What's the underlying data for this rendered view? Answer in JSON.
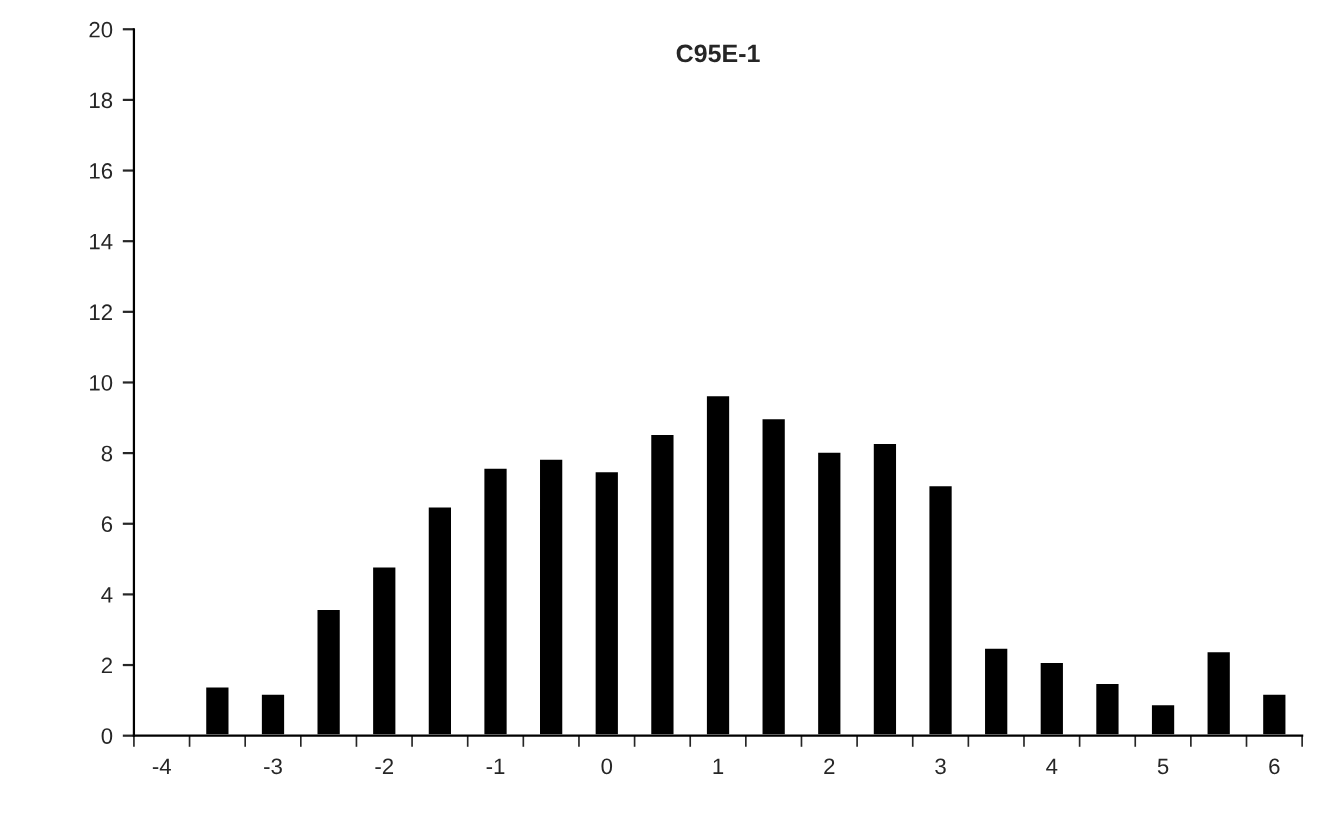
{
  "chart_data": {
    "type": "bar",
    "title": "C95E-1",
    "categories": [
      "-4",
      null,
      "-3",
      null,
      "-2",
      null,
      "-1",
      null,
      "0",
      null,
      "1",
      null,
      "2",
      null,
      "3",
      null,
      "4",
      null,
      "5",
      null,
      "6"
    ],
    "values": [
      null,
      1.4,
      1.2,
      3.6,
      4.8,
      6.5,
      7.6,
      7.85,
      7.5,
      8.55,
      9.65,
      9.0,
      8.05,
      8.3,
      7.1,
      2.5,
      2.1,
      1.5,
      0.9,
      2.4,
      1.2
    ],
    "color": "#000000",
    "ylim": [
      0,
      20
    ],
    "yticks": [
      0,
      2,
      4,
      6,
      8,
      10,
      12,
      14,
      16,
      18,
      20
    ],
    "grid": false
  }
}
